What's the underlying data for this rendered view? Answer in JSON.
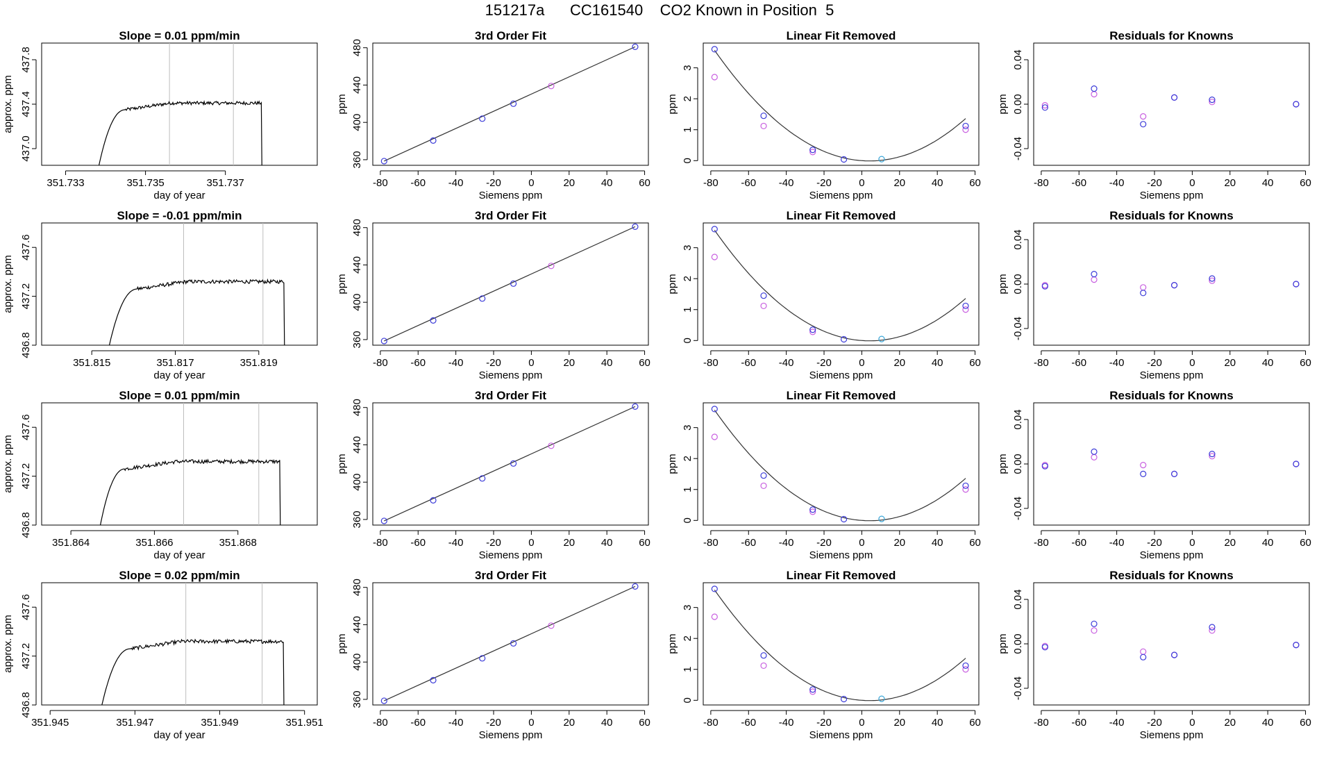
{
  "figure": {
    "suptitle": "151217a      CC161540    CO2 Known in Position  5"
  },
  "colors": {
    "axis": "#000000",
    "trace": "#000000",
    "window_lines": "#bdbdbd",
    "fit_curve": "#333333",
    "blue_points": "#3a3ad8",
    "magenta_points": "#c85ee0",
    "cyan_points": "#3aa6d8"
  },
  "chart_data": [
    {
      "id": "r1c1",
      "type": "line",
      "title": "Slope =  0.01  ppm/min",
      "xlabel": "day of year",
      "ylabel": "approx. ppm",
      "xlim": [
        351.7324,
        351.7393
      ],
      "ylim": [
        436.85,
        437.95
      ],
      "xticks": [
        351.733,
        351.735,
        351.737
      ],
      "xticklabels": [
        "351.733",
        "351.735",
        "351.737"
      ],
      "yticks": [
        437.0,
        437.4,
        437.8
      ],
      "yticklabels": [
        "437.0",
        "437.4",
        "437.8"
      ],
      "vlines": [
        351.7356,
        351.7372
      ],
      "x_start": 351.7337,
      "x_rise_end": 351.7345,
      "x_fall": 351.7379,
      "plateau": 437.39,
      "baseline": 436.6
    },
    {
      "id": "r1c2",
      "type": "scatter",
      "title": "3rd Order Fit",
      "xlabel": "Siemens ppm",
      "ylabel": "ppm",
      "xlim": [
        -84,
        62
      ],
      "ylim": [
        354,
        485
      ],
      "xticks": [
        -80,
        -60,
        -40,
        -20,
        0,
        20,
        40,
        60
      ],
      "xticklabels": [
        "-80",
        "-60",
        "-40",
        "-20",
        "0",
        "20",
        "40",
        "60"
      ],
      "yticks": [
        360,
        400,
        440,
        480
      ],
      "yticklabels": [
        "360",
        "400",
        "440",
        "480"
      ],
      "fit_line": [
        [
          -78,
          358.5
        ],
        [
          55,
          481
        ]
      ],
      "points_blue": [
        [
          -78,
          358.5
        ],
        [
          -52,
          380.5
        ],
        [
          -26,
          404
        ],
        [
          -9.5,
          420
        ],
        [
          55,
          481
        ]
      ],
      "points_magenta": [
        [
          10.5,
          439
        ]
      ]
    },
    {
      "id": "r1c3",
      "type": "scatter",
      "title": "Linear Fit Removed",
      "xlabel": "Siemens ppm",
      "ylabel": "ppm",
      "xlim": [
        -84,
        62
      ],
      "ylim": [
        -0.15,
        3.8
      ],
      "xticks": [
        -80,
        -60,
        -40,
        -20,
        0,
        20,
        40,
        60
      ],
      "xticklabels": [
        "-80",
        "-60",
        "-40",
        "-20",
        "0",
        "20",
        "40",
        "60"
      ],
      "yticks": [
        0,
        1,
        2,
        3
      ],
      "yticklabels": [
        "0",
        "1",
        "2",
        "3"
      ],
      "curve": {
        "a": 0.00053,
        "b": -0.0044,
        "c": 0.0
      },
      "points_blue": [
        [
          -78,
          3.6
        ],
        [
          -52,
          1.45
        ],
        [
          -26,
          0.35
        ],
        [
          -9.5,
          0.04
        ],
        [
          55,
          1.12
        ]
      ],
      "points_magenta": [
        [
          -78,
          2.7
        ],
        [
          -52,
          1.12
        ],
        [
          -26,
          0.28
        ],
        [
          55,
          1.0
        ]
      ],
      "points_cyan": [
        [
          10.5,
          0.05
        ]
      ]
    },
    {
      "id": "r1c4",
      "type": "scatter",
      "title": "Residuals for Knowns",
      "xlabel": "Siemens ppm",
      "ylabel": "ppm",
      "xlim": [
        -84,
        62
      ],
      "ylim": [
        -0.055,
        0.055
      ],
      "xticks": [
        -80,
        -60,
        -40,
        -20,
        0,
        20,
        40,
        60
      ],
      "xticklabels": [
        "-80",
        "-60",
        "-40",
        "-20",
        "0",
        "20",
        "40",
        "60"
      ],
      "yticks": [
        -0.04,
        0.0,
        0.04
      ],
      "yticklabels": [
        "-0.04",
        "0.00",
        "0.04"
      ],
      "points_blue": [
        [
          -78,
          -0.003
        ],
        [
          -52,
          0.014
        ],
        [
          -26,
          -0.018
        ],
        [
          -9.5,
          0.006
        ],
        [
          10.5,
          0.004
        ],
        [
          55,
          0.0
        ]
      ],
      "points_magenta": [
        [
          -78,
          -0.001
        ],
        [
          -52,
          0.009
        ],
        [
          -26,
          -0.011
        ],
        [
          -9.5,
          0.006
        ],
        [
          10.5,
          0.002
        ],
        [
          55,
          0.0
        ]
      ]
    },
    {
      "id": "r2c1",
      "type": "line",
      "title": "Slope =  -0.01  ppm/min",
      "xlabel": "day of year",
      "ylabel": "approx. ppm",
      "xlim": [
        351.8138,
        351.8204
      ],
      "ylim": [
        436.8,
        437.8
      ],
      "xticks": [
        351.815,
        351.817,
        351.819
      ],
      "xticklabels": [
        "351.815",
        "351.817",
        "351.819"
      ],
      "yticks": [
        436.8,
        437.2,
        437.6
      ],
      "yticklabels": [
        "436.8",
        "437.2",
        "437.6"
      ],
      "vlines": [
        351.8172,
        351.8191
      ],
      "x_start": 351.8153,
      "x_rise_end": 351.8161,
      "x_fall": 351.8196,
      "plateau": 437.3,
      "baseline": 436.6
    },
    {
      "id": "r2c2",
      "type": "scatter",
      "title": "3rd Order Fit",
      "xlabel": "Siemens ppm",
      "ylabel": "ppm",
      "xlim": [
        -84,
        62
      ],
      "ylim": [
        354,
        485
      ],
      "xticks": [
        -80,
        -60,
        -40,
        -20,
        0,
        20,
        40,
        60
      ],
      "xticklabels": [
        "-80",
        "-60",
        "-40",
        "-20",
        "0",
        "20",
        "40",
        "60"
      ],
      "yticks": [
        360,
        400,
        440,
        480
      ],
      "yticklabels": [
        "360",
        "400",
        "440",
        "480"
      ],
      "fit_line": [
        [
          -78,
          358.5
        ],
        [
          55,
          481
        ]
      ],
      "points_blue": [
        [
          -78,
          358.5
        ],
        [
          -52,
          380.5
        ],
        [
          -26,
          404
        ],
        [
          -9.5,
          420
        ],
        [
          55,
          481
        ]
      ],
      "points_magenta": [
        [
          10.5,
          439
        ]
      ]
    },
    {
      "id": "r2c3",
      "type": "scatter",
      "title": "Linear Fit Removed",
      "xlabel": "Siemens ppm",
      "ylabel": "ppm",
      "xlim": [
        -84,
        62
      ],
      "ylim": [
        -0.15,
        3.8
      ],
      "xticks": [
        -80,
        -60,
        -40,
        -20,
        0,
        20,
        40,
        60
      ],
      "xticklabels": [
        "-80",
        "-60",
        "-40",
        "-20",
        "0",
        "20",
        "40",
        "60"
      ],
      "yticks": [
        0,
        1,
        2,
        3
      ],
      "yticklabels": [
        "0",
        "1",
        "2",
        "3"
      ],
      "curve": {
        "a": 0.00053,
        "b": -0.0044,
        "c": 0.0
      },
      "points_blue": [
        [
          -78,
          3.6
        ],
        [
          -52,
          1.45
        ],
        [
          -26,
          0.35
        ],
        [
          -9.5,
          0.04
        ],
        [
          55,
          1.12
        ]
      ],
      "points_magenta": [
        [
          -78,
          2.7
        ],
        [
          -52,
          1.12
        ],
        [
          -26,
          0.28
        ],
        [
          55,
          1.0
        ]
      ],
      "points_cyan": [
        [
          10.5,
          0.05
        ]
      ]
    },
    {
      "id": "r2c4",
      "type": "scatter",
      "title": "Residuals for Knowns",
      "xlabel": "Siemens ppm",
      "ylabel": "ppm",
      "xlim": [
        -84,
        62
      ],
      "ylim": [
        -0.055,
        0.055
      ],
      "xticks": [
        -80,
        -60,
        -40,
        -20,
        0,
        20,
        40,
        60
      ],
      "xticklabels": [
        "-80",
        "-60",
        "-40",
        "-20",
        "0",
        "20",
        "40",
        "60"
      ],
      "yticks": [
        -0.04,
        0.0,
        0.04
      ],
      "yticklabels": [
        "-0.04",
        "0.00",
        "0.04"
      ],
      "points_blue": [
        [
          -78,
          -0.002
        ],
        [
          -52,
          0.009
        ],
        [
          -26,
          -0.008
        ],
        [
          -9.5,
          -0.001
        ],
        [
          10.5,
          0.005
        ],
        [
          55,
          0.0
        ]
      ],
      "points_magenta": [
        [
          -78,
          -0.001
        ],
        [
          -52,
          0.004
        ],
        [
          -26,
          -0.003
        ],
        [
          -9.5,
          -0.001
        ],
        [
          10.5,
          0.003
        ],
        [
          55,
          0.0
        ]
      ]
    },
    {
      "id": "r3c1",
      "type": "line",
      "title": "Slope =  0.01  ppm/min",
      "xlabel": "day of year",
      "ylabel": "approx. ppm",
      "xlim": [
        351.8633,
        351.8699
      ],
      "ylim": [
        436.8,
        437.8
      ],
      "xticks": [
        351.864,
        351.866,
        351.868
      ],
      "xticklabels": [
        "351.864",
        "351.866",
        "351.868"
      ],
      "yticks": [
        436.8,
        437.2,
        437.6
      ],
      "yticklabels": [
        "436.8",
        "437.2",
        "437.6"
      ],
      "vlines": [
        351.8667,
        351.8685
      ],
      "x_start": 351.8646,
      "x_rise_end": 351.8653,
      "x_fall": 351.869,
      "plateau": 437.3,
      "baseline": 436.6
    },
    {
      "id": "r3c2",
      "type": "scatter",
      "title": "3rd Order Fit",
      "xlabel": "Siemens ppm",
      "ylabel": "ppm",
      "xlim": [
        -84,
        62
      ],
      "ylim": [
        354,
        485
      ],
      "xticks": [
        -80,
        -60,
        -40,
        -20,
        0,
        20,
        40,
        60
      ],
      "xticklabels": [
        "-80",
        "-60",
        "-40",
        "-20",
        "0",
        "20",
        "40",
        "60"
      ],
      "yticks": [
        360,
        400,
        440,
        480
      ],
      "yticklabels": [
        "360",
        "400",
        "440",
        "480"
      ],
      "fit_line": [
        [
          -78,
          358.5
        ],
        [
          55,
          481
        ]
      ],
      "points_blue": [
        [
          -78,
          358.5
        ],
        [
          -52,
          380.5
        ],
        [
          -26,
          404
        ],
        [
          -9.5,
          420
        ],
        [
          55,
          481
        ]
      ],
      "points_magenta": [
        [
          10.5,
          439
        ]
      ]
    },
    {
      "id": "r3c3",
      "type": "scatter",
      "title": "Linear Fit Removed",
      "xlabel": "Siemens ppm",
      "ylabel": "ppm",
      "xlim": [
        -84,
        62
      ],
      "ylim": [
        -0.15,
        3.8
      ],
      "xticks": [
        -80,
        -60,
        -40,
        -20,
        0,
        20,
        40,
        60
      ],
      "xticklabels": [
        "-80",
        "-60",
        "-40",
        "-20",
        "0",
        "20",
        "40",
        "60"
      ],
      "yticks": [
        0,
        1,
        2,
        3
      ],
      "yticklabels": [
        "0",
        "1",
        "2",
        "3"
      ],
      "curve": {
        "a": 0.00053,
        "b": -0.0044,
        "c": 0.0
      },
      "points_blue": [
        [
          -78,
          3.6
        ],
        [
          -52,
          1.45
        ],
        [
          -26,
          0.35
        ],
        [
          -9.5,
          0.04
        ],
        [
          55,
          1.12
        ]
      ],
      "points_magenta": [
        [
          -78,
          2.7
        ],
        [
          -52,
          1.12
        ],
        [
          -26,
          0.28
        ],
        [
          55,
          1.0
        ]
      ],
      "points_cyan": [
        [
          10.5,
          0.05
        ]
      ]
    },
    {
      "id": "r3c4",
      "type": "scatter",
      "title": "Residuals for Knowns",
      "xlabel": "Siemens ppm",
      "ylabel": "ppm",
      "xlim": [
        -84,
        62
      ],
      "ylim": [
        -0.055,
        0.055
      ],
      "xticks": [
        -80,
        -60,
        -40,
        -20,
        0,
        20,
        40,
        60
      ],
      "xticklabels": [
        "-80",
        "-60",
        "-40",
        "-20",
        "0",
        "20",
        "40",
        "60"
      ],
      "yticks": [
        -0.04,
        0.0,
        0.04
      ],
      "yticklabels": [
        "-0.04",
        "0.00",
        "0.04"
      ],
      "points_blue": [
        [
          -78,
          -0.002
        ],
        [
          -52,
          0.011
        ],
        [
          -26,
          -0.009
        ],
        [
          -9.5,
          -0.009
        ],
        [
          10.5,
          0.009
        ],
        [
          55,
          0.0
        ]
      ],
      "points_magenta": [
        [
          -78,
          -0.001
        ],
        [
          -52,
          0.006
        ],
        [
          -26,
          -0.001
        ],
        [
          -9.5,
          -0.009
        ],
        [
          10.5,
          0.007
        ],
        [
          55,
          0.0
        ]
      ]
    },
    {
      "id": "r4c1",
      "type": "line",
      "title": "Slope =  0.02  ppm/min",
      "xlabel": "day of year",
      "ylabel": "approx. ppm",
      "xlim": [
        351.9448,
        351.9513
      ],
      "ylim": [
        436.8,
        437.8
      ],
      "xticks": [
        351.945,
        351.947,
        351.949,
        351.951
      ],
      "xticklabels": [
        "351.945",
        "351.947",
        "351.949",
        "351.951"
      ],
      "yticks": [
        436.8,
        437.2,
        437.6
      ],
      "yticklabels": [
        "436.8",
        "437.2",
        "437.6"
      ],
      "vlines": [
        351.9482,
        351.95
      ],
      "x_start": 351.9461,
      "x_rise_end": 351.9469,
      "x_fall": 351.9505,
      "plateau": 437.3,
      "baseline": 436.6
    },
    {
      "id": "r4c2",
      "type": "scatter",
      "title": "3rd Order Fit",
      "xlabel": "Siemens ppm",
      "ylabel": "ppm",
      "xlim": [
        -84,
        62
      ],
      "ylim": [
        354,
        485
      ],
      "xticks": [
        -80,
        -60,
        -40,
        -20,
        0,
        20,
        40,
        60
      ],
      "xticklabels": [
        "-80",
        "-60",
        "-40",
        "-20",
        "0",
        "20",
        "40",
        "60"
      ],
      "yticks": [
        360,
        400,
        440,
        480
      ],
      "yticklabels": [
        "360",
        "400",
        "440",
        "480"
      ],
      "fit_line": [
        [
          -78,
          358.5
        ],
        [
          55,
          481
        ]
      ],
      "points_blue": [
        [
          -78,
          358.5
        ],
        [
          -52,
          380.5
        ],
        [
          -26,
          404
        ],
        [
          -9.5,
          420
        ],
        [
          55,
          481
        ]
      ],
      "points_magenta": [
        [
          10.5,
          439
        ]
      ]
    },
    {
      "id": "r4c3",
      "type": "scatter",
      "title": "Linear Fit Removed",
      "xlabel": "Siemens ppm",
      "ylabel": "ppm",
      "xlim": [
        -84,
        62
      ],
      "ylim": [
        -0.15,
        3.8
      ],
      "xticks": [
        -80,
        -60,
        -40,
        -20,
        0,
        20,
        40,
        60
      ],
      "xticklabels": [
        "-80",
        "-60",
        "-40",
        "-20",
        "0",
        "20",
        "40",
        "60"
      ],
      "yticks": [
        0,
        1,
        2,
        3
      ],
      "yticklabels": [
        "0",
        "1",
        "2",
        "3"
      ],
      "curve": {
        "a": 0.00053,
        "b": -0.0044,
        "c": 0.0
      },
      "points_blue": [
        [
          -78,
          3.6
        ],
        [
          -52,
          1.45
        ],
        [
          -26,
          0.35
        ],
        [
          -9.5,
          0.04
        ],
        [
          55,
          1.12
        ]
      ],
      "points_magenta": [
        [
          -78,
          2.7
        ],
        [
          -52,
          1.12
        ],
        [
          -26,
          0.28
        ],
        [
          55,
          1.0
        ]
      ],
      "points_cyan": [
        [
          10.5,
          0.05
        ]
      ]
    },
    {
      "id": "r4c4",
      "type": "scatter",
      "title": "Residuals for Knowns",
      "xlabel": "Siemens ppm",
      "ylabel": "ppm",
      "xlim": [
        -84,
        62
      ],
      "ylim": [
        -0.055,
        0.055
      ],
      "xticks": [
        -80,
        -60,
        -40,
        -20,
        0,
        20,
        40,
        60
      ],
      "xticklabels": [
        "-80",
        "-60",
        "-40",
        "-20",
        "0",
        "20",
        "40",
        "60"
      ],
      "yticks": [
        -0.04,
        0.0,
        0.04
      ],
      "yticklabels": [
        "-0.04",
        "0.00",
        "0.04"
      ],
      "points_blue": [
        [
          -78,
          -0.003
        ],
        [
          -52,
          0.018
        ],
        [
          -26,
          -0.012
        ],
        [
          -9.5,
          -0.01
        ],
        [
          10.5,
          0.015
        ],
        [
          55,
          -0.001
        ]
      ],
      "points_magenta": [
        [
          -78,
          -0.002
        ],
        [
          -52,
          0.012
        ],
        [
          -26,
          -0.007
        ],
        [
          -9.5,
          -0.01
        ],
        [
          10.5,
          0.012
        ],
        [
          55,
          -0.001
        ]
      ]
    }
  ]
}
